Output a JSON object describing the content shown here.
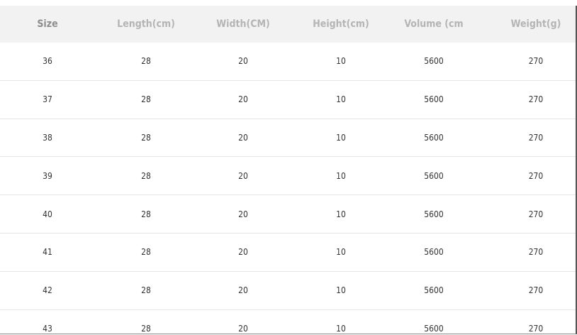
{
  "table": {
    "headers": [
      "Size",
      "Length(cm)",
      "Width(CM)",
      "Height(cm)",
      "Volume (cm",
      "Weight(g)"
    ],
    "rows": [
      [
        "36",
        "28",
        "20",
        "10",
        "5600",
        "270"
      ],
      [
        "37",
        "28",
        "20",
        "10",
        "5600",
        "270"
      ],
      [
        "38",
        "28",
        "20",
        "10",
        "5600",
        "270"
      ],
      [
        "39",
        "28",
        "20",
        "10",
        "5600",
        "270"
      ],
      [
        "40",
        "28",
        "20",
        "10",
        "5600",
        "270"
      ],
      [
        "41",
        "28",
        "20",
        "10",
        "5600",
        "270"
      ],
      [
        "42",
        "28",
        "20",
        "10",
        "5600",
        "270"
      ],
      [
        "43",
        "28",
        "20",
        "10",
        "5600",
        "270"
      ]
    ]
  }
}
